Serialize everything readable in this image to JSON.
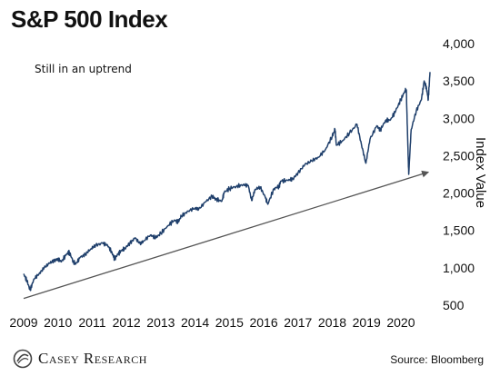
{
  "title": "S&P 500 Index",
  "annotation": "Still in an uptrend",
  "logo_text": "Casey Research",
  "source": "Source: Bloomberg",
  "chart_data": {
    "type": "line",
    "title": "S&P 500 Index",
    "xlabel": "",
    "ylabel": "Index Value",
    "ylim": [
      500,
      4000
    ],
    "xlim": [
      2009.0,
      2020.85
    ],
    "yticks": [
      "4,000",
      "3,500",
      "3,000",
      "2,500",
      "2,000",
      "1,500",
      "1,000",
      "500"
    ],
    "ytick_values": [
      4000,
      3500,
      3000,
      2500,
      2000,
      1500,
      1000,
      500
    ],
    "xticks": [
      "2009",
      "2010",
      "2011",
      "2012",
      "2013",
      "2014",
      "2015",
      "2016",
      "2017",
      "2018",
      "2019",
      "2020"
    ],
    "xtick_values": [
      2009,
      2010,
      2011,
      2012,
      2013,
      2014,
      2015,
      2016,
      2017,
      2018,
      2019,
      2020
    ],
    "grid": false,
    "y_axis_side": "right",
    "line_color": "#1f3f6b",
    "trend_color": "#555555",
    "series": [
      {
        "x": [
          2009.0,
          2009.1,
          2009.19,
          2009.3,
          2009.45,
          2009.6,
          2009.75,
          2009.9,
          2010.0,
          2010.1,
          2010.25,
          2010.33,
          2010.45,
          2010.52,
          2010.65,
          2010.8,
          2010.95,
          2011.1,
          2011.3,
          2011.45,
          2011.58,
          2011.65,
          2011.75,
          2011.85,
          2011.95,
          2012.1,
          2012.25,
          2012.4,
          2012.5,
          2012.7,
          2012.85,
          2013.0,
          2013.2,
          2013.4,
          2013.5,
          2013.6,
          2013.8,
          2014.0,
          2014.1,
          2014.3,
          2014.5,
          2014.6,
          2014.78,
          2014.85,
          2015.0,
          2015.2,
          2015.4,
          2015.55,
          2015.65,
          2015.75,
          2015.9,
          2016.05,
          2016.12,
          2016.3,
          2016.45,
          2016.5,
          2016.7,
          2016.85,
          2017.0,
          2017.2,
          2017.4,
          2017.6,
          2017.8,
          2018.0,
          2018.08,
          2018.12,
          2018.3,
          2018.5,
          2018.72,
          2018.85,
          2018.98,
          2019.1,
          2019.3,
          2019.4,
          2019.55,
          2019.7,
          2019.85,
          2020.0,
          2020.12,
          2020.16,
          2020.2,
          2020.23,
          2020.3,
          2020.45,
          2020.6,
          2020.68,
          2020.75,
          2020.8,
          2020.85
        ],
        "y": [
          920,
          820,
          700,
          850,
          920,
          1000,
          1060,
          1100,
          1120,
          1080,
          1180,
          1210,
          1080,
          1050,
          1140,
          1180,
          1250,
          1300,
          1330,
          1300,
          1200,
          1120,
          1180,
          1230,
          1260,
          1330,
          1400,
          1320,
          1360,
          1440,
          1400,
          1460,
          1560,
          1640,
          1610,
          1690,
          1760,
          1800,
          1780,
          1880,
          1960,
          1920,
          1890,
          2010,
          2060,
          2090,
          2110,
          2100,
          1900,
          2050,
          2080,
          1940,
          1850,
          2060,
          2090,
          2160,
          2170,
          2190,
          2270,
          2380,
          2430,
          2480,
          2580,
          2760,
          2850,
          2640,
          2700,
          2800,
          2920,
          2650,
          2400,
          2720,
          2900,
          2840,
          2970,
          2980,
          3100,
          3250,
          3370,
          3380,
          2700,
          2250,
          2850,
          3100,
          3250,
          3500,
          3400,
          3250,
          3620
        ]
      }
    ],
    "trend_line": {
      "x": [
        2009.0,
        2020.8
      ],
      "y": [
        590,
        2280
      ]
    }
  }
}
